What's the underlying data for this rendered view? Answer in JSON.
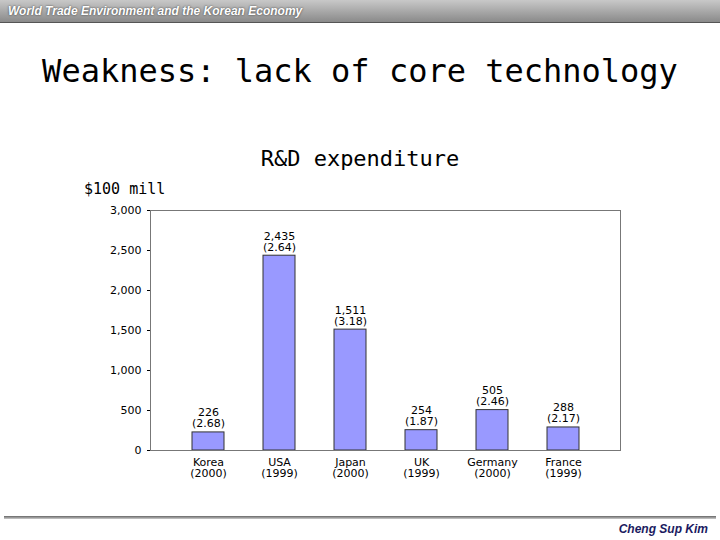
{
  "header": "World Trade Environment and the Korean Economy",
  "slide_title": "Weakness: lack of core technology",
  "footer": "Cheng Sup Kim",
  "chart_data": {
    "type": "bar",
    "title": "R&D expenditure",
    "y_label": "$100 mill",
    "categories": [
      "Korea\n(2000)",
      "USA\n(1999)",
      "Japan\n(2000)",
      "UK\n(1999)",
      "Germany\n(2000)",
      "France\n(1999)"
    ],
    "values": [
      226,
      2435,
      1511,
      254,
      505,
      288
    ],
    "value_labels": [
      "226\n(2.68)",
      "2,435\n(2.64)",
      "1,511\n(3.18)",
      "254\n(1.87)",
      "505\n(2.46)",
      "288\n(2.17)"
    ],
    "data_labels": true,
    "color": "#9999ff",
    "ylim": [
      0,
      3000
    ],
    "yticks": [
      0,
      500,
      {
        "value": 1000,
        "label": "1,000"
      },
      {
        "value": 1500,
        "label": "1,500"
      },
      {
        "value": 2000,
        "label": "2,000"
      },
      {
        "value": 2500,
        "label": "2,500"
      },
      {
        "value": 3000,
        "label": "3,000"
      }
    ],
    "grid": false
  }
}
